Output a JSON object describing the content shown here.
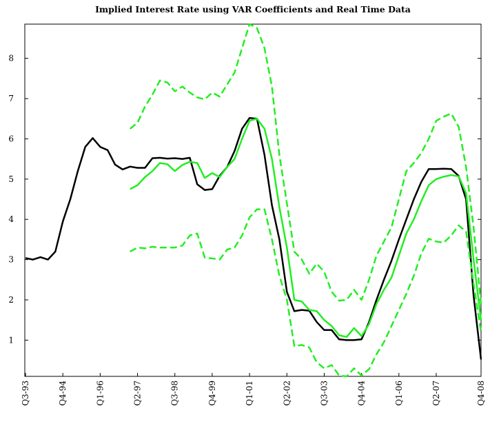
{
  "chart_data": {
    "type": "line",
    "title": "Implied Interest Rate using VAR Coefficients and Real Time Data",
    "categories": [
      "Q3-93",
      null,
      null,
      null,
      null,
      "Q4-94",
      null,
      null,
      null,
      null,
      "Q1-96",
      null,
      null,
      null,
      null,
      "Q2-97",
      null,
      null,
      null,
      null,
      "Q3-98",
      null,
      null,
      null,
      null,
      "Q4-99",
      null,
      null,
      null,
      null,
      "Q1-01",
      null,
      null,
      null,
      null,
      "Q2-02",
      null,
      null,
      null,
      null,
      "Q3-03",
      null,
      null,
      null,
      null,
      "Q4-04",
      null,
      null,
      null,
      null,
      "Q1-06",
      null,
      null,
      null,
      null,
      "Q2-07",
      null,
      null,
      null,
      null,
      null,
      "Q4-08"
    ],
    "ylim": [
      0.1,
      8.85
    ],
    "yticks": [
      1,
      2,
      3,
      4,
      5,
      6,
      7,
      8
    ],
    "series": [
      {
        "color": "#000000",
        "dashed": false,
        "values": [
          3.04,
          3.0,
          3.06,
          3.0,
          3.2,
          3.95,
          4.5,
          5.2,
          5.8,
          6.02,
          5.8,
          5.72,
          5.36,
          5.24,
          5.31,
          5.28,
          5.28,
          5.52,
          5.53,
          5.51,
          5.52,
          5.5,
          5.53,
          4.87,
          4.73,
          4.75,
          5.08,
          5.3,
          5.7,
          6.25,
          6.52,
          6.5,
          5.6,
          4.35,
          3.5,
          2.2,
          1.72,
          1.75,
          1.73,
          1.45,
          1.25,
          1.25,
          1.02,
          1.0,
          1.0,
          1.02,
          1.45,
          2.0,
          2.5,
          2.97,
          3.5,
          4.0,
          4.5,
          4.93,
          5.25,
          5.25,
          5.26,
          5.25,
          5.08,
          4.5,
          2.1,
          0.52
        ]
      },
      {
        "color": "#22ee22",
        "dashed": false,
        "values": [
          null,
          null,
          null,
          null,
          null,
          null,
          null,
          null,
          null,
          null,
          null,
          null,
          null,
          null,
          4.75,
          4.85,
          5.05,
          5.2,
          5.4,
          5.37,
          5.2,
          5.35,
          5.43,
          5.4,
          5.03,
          5.15,
          5.05,
          5.3,
          5.5,
          6.0,
          6.45,
          6.5,
          6.25,
          5.5,
          4.3,
          3.3,
          2.0,
          1.96,
          1.75,
          1.72,
          1.5,
          1.35,
          1.12,
          1.08,
          1.3,
          1.1,
          1.4,
          1.9,
          2.25,
          2.55,
          3.1,
          3.65,
          4.0,
          4.45,
          4.85,
          5.0,
          5.06,
          5.1,
          5.07,
          4.65,
          3.0,
          1.5
        ]
      },
      {
        "color": "#22ee22",
        "dashed": true,
        "values": [
          null,
          null,
          null,
          null,
          null,
          null,
          null,
          null,
          null,
          null,
          null,
          null,
          null,
          null,
          6.25,
          6.4,
          6.8,
          7.1,
          7.45,
          7.4,
          7.18,
          7.3,
          7.15,
          7.03,
          6.98,
          7.15,
          7.05,
          7.35,
          7.65,
          8.25,
          8.85,
          8.75,
          8.25,
          7.3,
          5.6,
          4.4,
          3.2,
          3.0,
          2.65,
          2.9,
          2.7,
          2.2,
          1.98,
          2.0,
          2.25,
          2.0,
          2.5,
          3.1,
          3.45,
          3.8,
          4.5,
          5.2,
          5.4,
          5.65,
          6.0,
          6.45,
          6.55,
          6.63,
          6.3,
          5.3,
          3.8,
          1.9
        ]
      },
      {
        "color": "#22ee22",
        "dashed": true,
        "values": [
          null,
          null,
          null,
          null,
          null,
          null,
          null,
          null,
          null,
          null,
          null,
          null,
          null,
          null,
          3.2,
          3.3,
          3.28,
          3.32,
          3.3,
          3.3,
          3.3,
          3.35,
          3.6,
          3.65,
          3.05,
          3.03,
          3.0,
          3.25,
          3.3,
          3.6,
          4.05,
          4.25,
          4.25,
          3.5,
          2.6,
          2.0,
          0.85,
          0.88,
          0.82,
          0.45,
          0.3,
          0.38,
          0.12,
          0.1,
          0.3,
          0.12,
          0.28,
          0.65,
          0.95,
          1.35,
          1.75,
          2.15,
          2.6,
          3.15,
          3.52,
          3.45,
          3.42,
          3.6,
          3.85,
          3.7,
          2.4,
          1.2
        ]
      }
    ]
  }
}
